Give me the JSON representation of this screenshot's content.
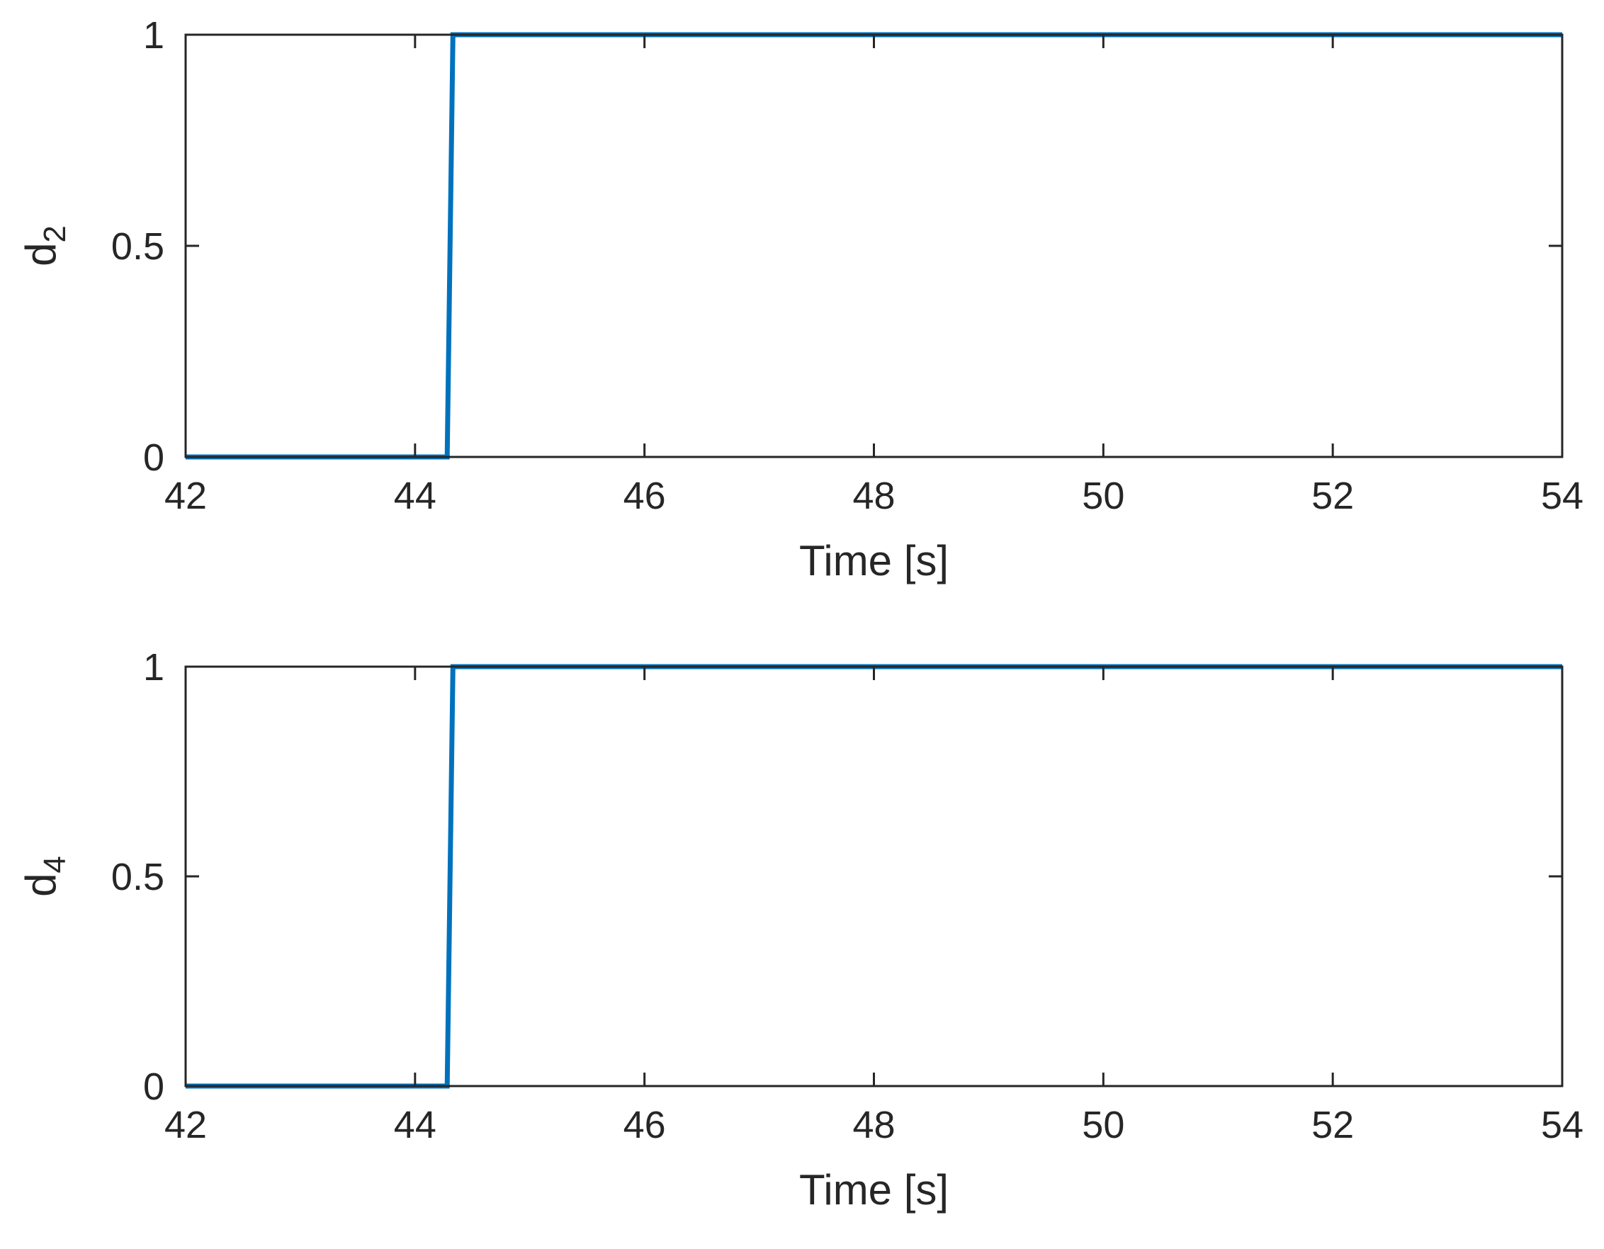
{
  "colors": {
    "line": "#0072BD",
    "axes": "#262626",
    "background": "#ffffff"
  },
  "chart_data": [
    {
      "type": "line",
      "title": "",
      "xlabel": "Time [s]",
      "ylabel": {
        "base": "d",
        "subscript": "2"
      },
      "xlim": [
        42,
        54
      ],
      "ylim": [
        0,
        1
      ],
      "xticks": [
        42,
        44,
        46,
        48,
        50,
        52,
        54
      ],
      "xtick_labels": [
        "42",
        "44",
        "46",
        "48",
        "50",
        "52",
        "54"
      ],
      "yticks": [
        0,
        0.5,
        1
      ],
      "ytick_labels": [
        "0",
        "0.5",
        "1"
      ],
      "grid": false,
      "box": true,
      "series": [
        {
          "x": [
            42,
            44.28,
            44.33,
            54
          ],
          "y": [
            0,
            0,
            1,
            1
          ]
        }
      ]
    },
    {
      "type": "line",
      "title": "",
      "xlabel": "Time [s]",
      "ylabel": {
        "base": "d",
        "subscript": "4"
      },
      "xlim": [
        42,
        54
      ],
      "ylim": [
        0,
        1
      ],
      "xticks": [
        42,
        44,
        46,
        48,
        50,
        52,
        54
      ],
      "xtick_labels": [
        "42",
        "44",
        "46",
        "48",
        "50",
        "52",
        "54"
      ],
      "yticks": [
        0,
        0.5,
        1
      ],
      "ytick_labels": [
        "0",
        "0.5",
        "1"
      ],
      "grid": false,
      "box": true,
      "series": [
        {
          "x": [
            42,
            44.28,
            44.33,
            54
          ],
          "y": [
            0,
            0,
            1,
            1
          ]
        }
      ]
    }
  ]
}
